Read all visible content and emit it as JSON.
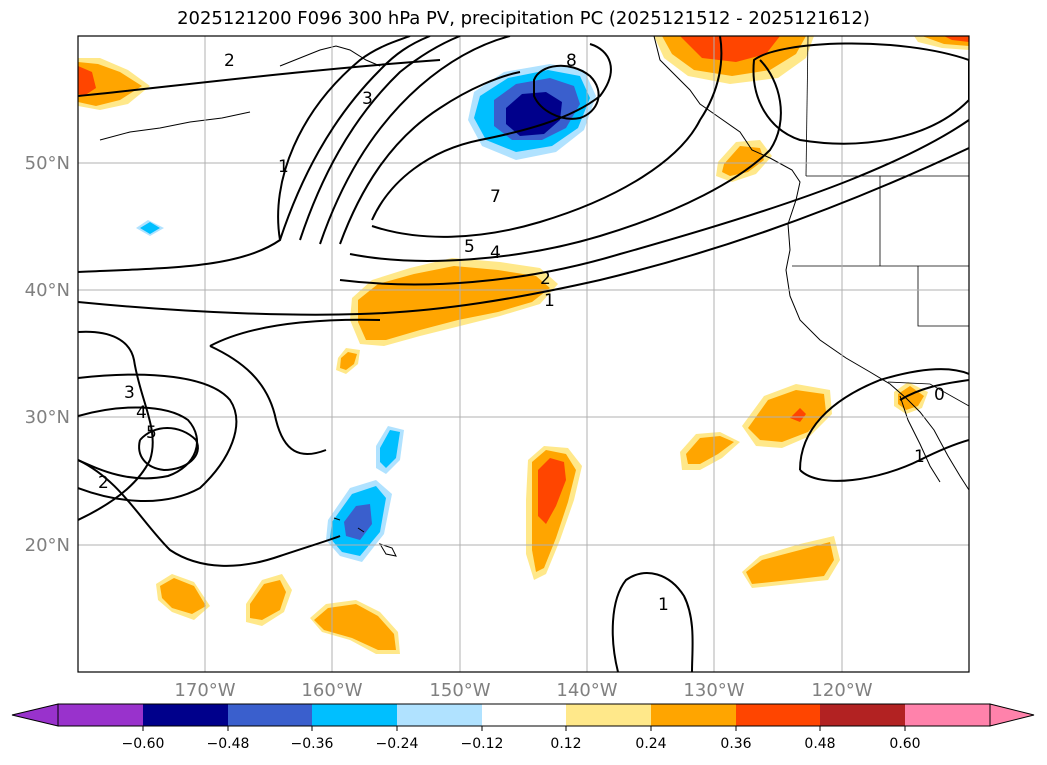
{
  "title": "2025121200 F096 300 hPa PV, precipitation PC (2025121512 - 2025121612)",
  "map": {
    "projection": "PlateCarree",
    "lon_range": [
      -180,
      -110
    ],
    "lat_range": [
      10,
      60
    ],
    "lat_ticks": [
      {
        "label": "20°N",
        "lat": 20
      },
      {
        "label": "30°N",
        "lat": 30
      },
      {
        "label": "40°N",
        "lat": 40
      },
      {
        "label": "50°N",
        "lat": 50
      }
    ],
    "lon_ticks": [
      {
        "label": "170°W",
        "lon": -170
      },
      {
        "label": "160°W",
        "lon": -160
      },
      {
        "label": "150°W",
        "lon": -150
      },
      {
        "label": "140°W",
        "lon": -140
      },
      {
        "label": "130°W",
        "lon": -130
      },
      {
        "label": "120°W",
        "lon": -120
      }
    ],
    "contour_labels": [
      "2",
      "3",
      "1",
      "8",
      "7",
      "5",
      "4",
      "2",
      "1",
      "3",
      "4",
      "5",
      "2",
      "1",
      "1",
      "0"
    ]
  },
  "colorbar": {
    "ticks": [
      "−0.60",
      "−0.48",
      "−0.36",
      "−0.24",
      "−0.12",
      "0.12",
      "0.24",
      "0.36",
      "0.48",
      "0.60"
    ],
    "colors": [
      "#9932cc",
      "#00008b",
      "#3a5fcd",
      "#00bfff",
      "#b0e2ff",
      "#ffffff",
      "#ffe88a",
      "#ffa500",
      "#ff4500",
      "#b22222",
      "#ff82ab"
    ],
    "extend": "both"
  }
}
